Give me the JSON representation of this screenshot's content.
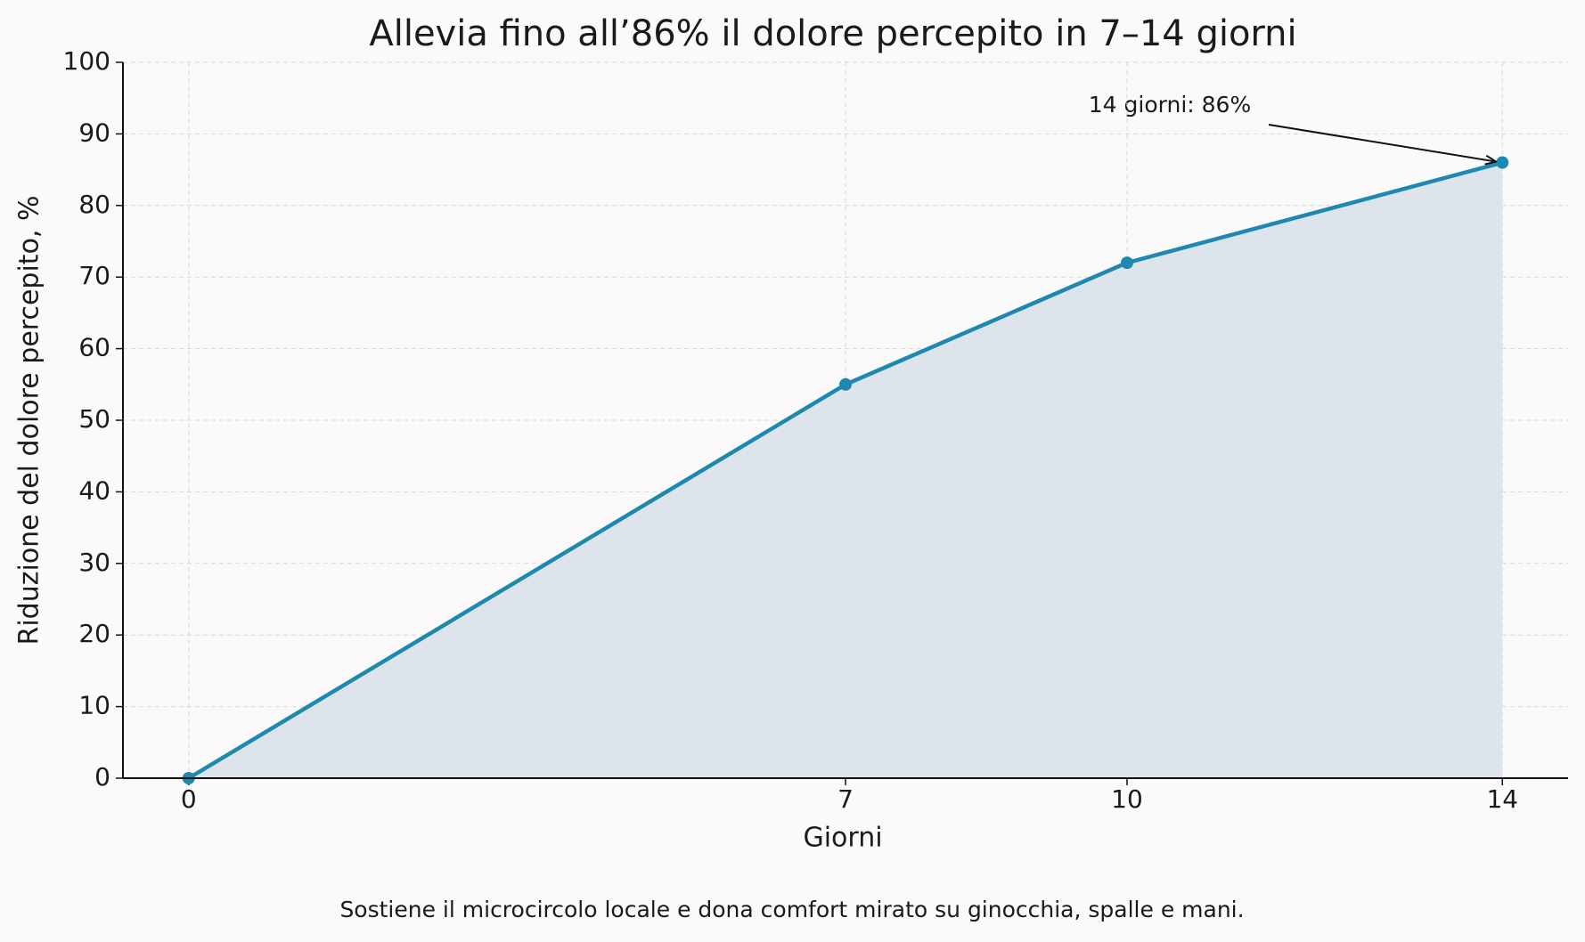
{
  "chart_data": {
    "type": "line",
    "title": "Allevia fino all’86% il dolore percepito in 7–14 giorni",
    "xlabel": "Giorni",
    "ylabel": "Riduzione del dolore percepito, %",
    "x": [
      0,
      7,
      10,
      14
    ],
    "values": [
      0,
      55,
      72,
      86
    ],
    "color": "#1f88b0",
    "fill_color": "#dde4ec",
    "xlim": [
      -0.7,
      14.7
    ],
    "xticks": [
      0,
      7,
      10,
      14
    ],
    "ylim": [
      0,
      100
    ],
    "yticks": [
      0,
      10,
      20,
      30,
      40,
      50,
      60,
      70,
      80,
      90,
      100
    ],
    "grid": true,
    "annotation": "14 giorni: 86%",
    "caption": "Sostiene il microcircolo locale e dona comfort mirato su ginocchia, spalle e mani."
  }
}
